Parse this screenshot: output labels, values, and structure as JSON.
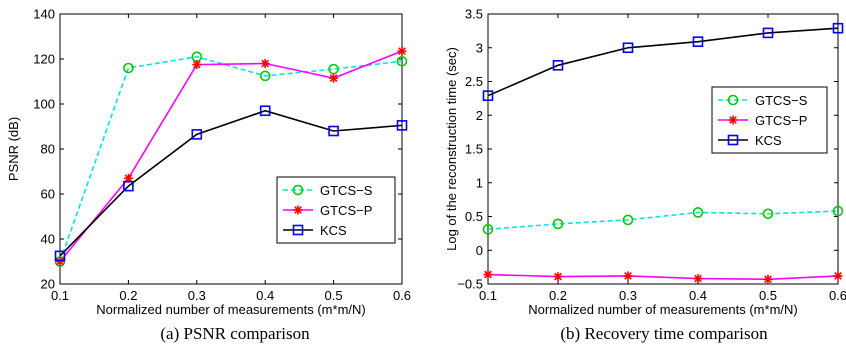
{
  "chart_data": [
    {
      "type": "line",
      "caption": "(a)  PSNR comparison",
      "xlabel": "Normalized number of measurements (m*m/N)",
      "ylabel": "PSNR (dB)",
      "xlim": [
        0.1,
        0.6
      ],
      "ylim": [
        20,
        140
      ],
      "xticks": [
        "0.1",
        "0.2",
        "0.3",
        "0.4",
        "0.5",
        "0.6"
      ],
      "yticks": [
        "20",
        "40",
        "60",
        "80",
        "100",
        "120",
        "140"
      ],
      "grid": false,
      "legend_position": "lower-right",
      "x": [
        0.1,
        0.2,
        0.3,
        0.4,
        0.5,
        0.6
      ],
      "series": [
        {
          "name": "GTCS−S",
          "color": "#00e5e5",
          "line": "dashed",
          "marker": "circle",
          "marker_color": "#00cc00",
          "values": [
            30,
            116,
            121,
            112.5,
            115.5,
            119
          ]
        },
        {
          "name": "GTCS−P",
          "color": "#ff00ff",
          "line": "solid",
          "marker": "asterisk",
          "marker_color": "#ff0000",
          "values": [
            30,
            67,
            117.5,
            118,
            111.5,
            123.5
          ]
        },
        {
          "name": "KCS",
          "color": "#000000",
          "line": "solid",
          "marker": "square",
          "marker_color": "#0000ff",
          "values": [
            32.5,
            63.5,
            86.5,
            97,
            88,
            90.5
          ]
        }
      ]
    },
    {
      "type": "line",
      "caption": "(b)  Recovery time comparison",
      "xlabel": "Normalized number of measurements (m*m/N)",
      "ylabel": "Log of the reconstruction time (sec)",
      "xlim": [
        0.1,
        0.6
      ],
      "ylim": [
        -0.5,
        3.5
      ],
      "xticks": [
        "0.1",
        "0.2",
        "0.3",
        "0.4",
        "0.5",
        "0.6"
      ],
      "yticks": [
        "−0.5",
        "0",
        "0.5",
        "1",
        "1.5",
        "2",
        "2.5",
        "3",
        "3.5"
      ],
      "grid": false,
      "legend_position": "middle-right",
      "x": [
        0.1,
        0.2,
        0.3,
        0.4,
        0.5,
        0.6
      ],
      "series": [
        {
          "name": "GTCS−S",
          "color": "#00e5e5",
          "line": "dashed",
          "marker": "circle",
          "marker_color": "#00cc00",
          "values": [
            0.31,
            0.39,
            0.45,
            0.56,
            0.54,
            0.58
          ]
        },
        {
          "name": "GTCS−P",
          "color": "#ff00ff",
          "line": "solid",
          "marker": "asterisk",
          "marker_color": "#ff0000",
          "values": [
            -0.36,
            -0.39,
            -0.38,
            -0.42,
            -0.43,
            -0.38
          ]
        },
        {
          "name": "KCS",
          "color": "#000000",
          "line": "solid",
          "marker": "square",
          "marker_color": "#0000ff",
          "values": [
            2.29,
            2.74,
            3.0,
            3.09,
            3.22,
            3.29
          ]
        }
      ]
    }
  ]
}
